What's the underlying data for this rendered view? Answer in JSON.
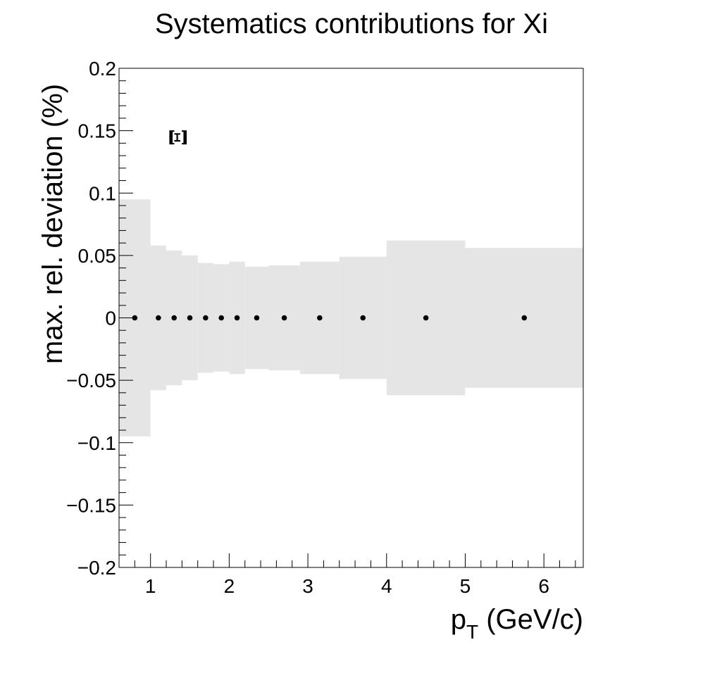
{
  "chart_data": {
    "type": "scatter",
    "title": "Systematics contributions for Xi",
    "xlabel": {
      "main": "p",
      "sub": "T",
      "rest": " (GeV/c)"
    },
    "ylabel": "max. rel. deviation (%)",
    "annotation": "Ξ",
    "xlim": [
      0.6,
      6.5
    ],
    "ylim": [
      -0.2,
      0.2
    ],
    "x_ticks": [
      1,
      2,
      3,
      4,
      5,
      6
    ],
    "x_tick_labels": [
      "1",
      "2",
      "3",
      "4",
      "5",
      "6"
    ],
    "y_ticks": [
      0.2,
      0.15,
      0.1,
      0.05,
      0,
      -0.05,
      -0.1,
      -0.15,
      -0.2
    ],
    "y_tick_labels": [
      "0.2",
      "0.15",
      "0.1",
      "0.05",
      "0",
      "−0.05",
      "−0.1",
      "−0.15",
      "−0.2"
    ],
    "grid": false,
    "band_color": "#e5e5e5",
    "marker_color": "#000000",
    "band": [
      {
        "x0": 0.6,
        "x1": 1.0,
        "value": 0.095
      },
      {
        "x0": 1.0,
        "x1": 1.2,
        "value": 0.058
      },
      {
        "x0": 1.2,
        "x1": 1.4,
        "value": 0.054
      },
      {
        "x0": 1.4,
        "x1": 1.6,
        "value": 0.05
      },
      {
        "x0": 1.6,
        "x1": 1.8,
        "value": 0.044
      },
      {
        "x0": 1.8,
        "x1": 2.0,
        "value": 0.043
      },
      {
        "x0": 2.0,
        "x1": 2.2,
        "value": 0.045
      },
      {
        "x0": 2.2,
        "x1": 2.5,
        "value": 0.041
      },
      {
        "x0": 2.5,
        "x1": 2.9,
        "value": 0.042
      },
      {
        "x0": 2.9,
        "x1": 3.4,
        "value": 0.045
      },
      {
        "x0": 3.4,
        "x1": 4.0,
        "value": 0.049
      },
      {
        "x0": 4.0,
        "x1": 5.0,
        "value": 0.062
      },
      {
        "x0": 5.0,
        "x1": 6.5,
        "value": 0.056
      }
    ],
    "points": [
      {
        "x": 0.8,
        "y": 0
      },
      {
        "x": 1.1,
        "y": 0
      },
      {
        "x": 1.3,
        "y": 0
      },
      {
        "x": 1.5,
        "y": 0
      },
      {
        "x": 1.7,
        "y": 0
      },
      {
        "x": 1.9,
        "y": 0
      },
      {
        "x": 2.1,
        "y": 0
      },
      {
        "x": 2.35,
        "y": 0
      },
      {
        "x": 2.7,
        "y": 0
      },
      {
        "x": 3.15,
        "y": 0
      },
      {
        "x": 3.7,
        "y": 0
      },
      {
        "x": 4.5,
        "y": 0
      },
      {
        "x": 5.75,
        "y": 0
      }
    ]
  }
}
